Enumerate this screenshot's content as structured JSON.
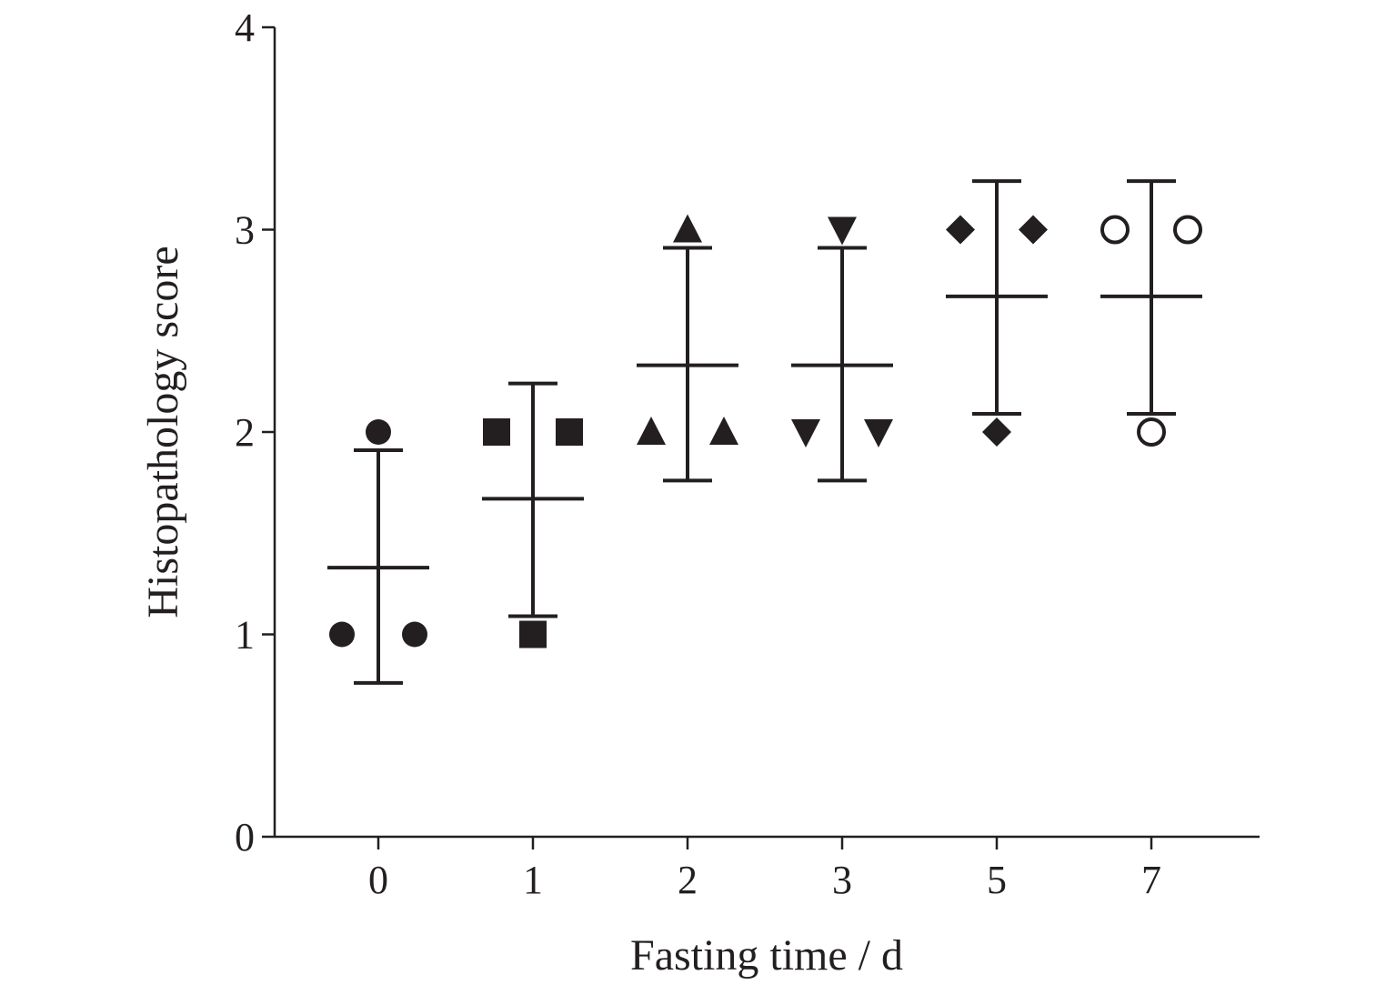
{
  "chart_data": {
    "type": "scatter",
    "title": "",
    "xlabel": "Fasting time / d",
    "ylabel": "Histopathology score",
    "ylim": [
      0,
      4
    ],
    "yticks": [
      "0",
      "1",
      "2",
      "3",
      "4"
    ],
    "categories": [
      "0",
      "1",
      "2",
      "3",
      "5",
      "7"
    ],
    "grid": false,
    "legend": "none",
    "marker_color": "#231f20",
    "groups": [
      {
        "category": "0",
        "marker": "circle",
        "points": [
          1,
          2,
          1
        ],
        "mean": 1.33,
        "error_low": 0.76,
        "error_high": 1.91
      },
      {
        "category": "1",
        "marker": "square",
        "points": [
          2,
          1,
          2
        ],
        "mean": 1.67,
        "error_low": 1.09,
        "error_high": 2.24
      },
      {
        "category": "2",
        "marker": "triangle-up",
        "points": [
          2,
          3,
          2
        ],
        "mean": 2.33,
        "error_low": 1.76,
        "error_high": 2.91
      },
      {
        "category": "3",
        "marker": "triangle-down",
        "points": [
          2,
          3,
          2
        ],
        "mean": 2.33,
        "error_low": 1.76,
        "error_high": 2.91
      },
      {
        "category": "5",
        "marker": "diamond",
        "points": [
          3,
          2,
          3
        ],
        "mean": 2.67,
        "error_low": 2.09,
        "error_high": 3.24
      },
      {
        "category": "7",
        "marker": "circle-open",
        "points": [
          3,
          2,
          3
        ],
        "mean": 2.67,
        "error_low": 2.09,
        "error_high": 3.24
      }
    ]
  }
}
